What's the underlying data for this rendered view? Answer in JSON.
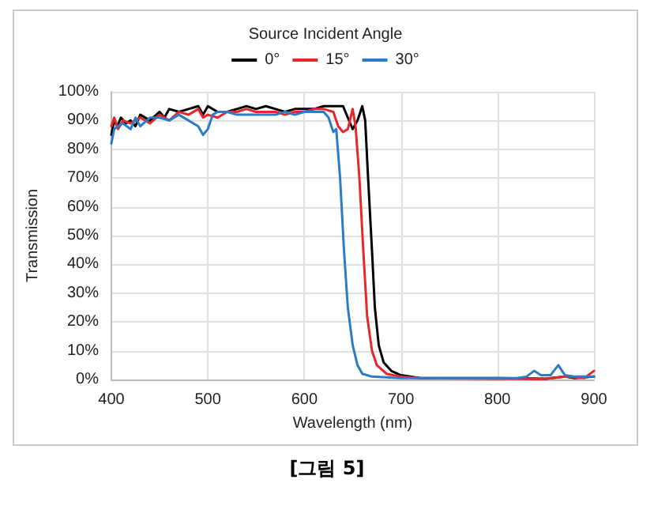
{
  "chart_data": {
    "type": "line",
    "legend_title": "Source Incident Angle",
    "xlabel": "Wavelength (nm)",
    "ylabel": "Transmission",
    "annotations": [
      "[그림 5]"
    ],
    "xlim": [
      400,
      900
    ],
    "xticks": [
      400,
      500,
      600,
      700,
      800,
      900
    ],
    "ylim": [
      0,
      100
    ],
    "yticks": [
      {
        "value": 0,
        "label": "0%"
      },
      {
        "value": 10,
        "label": "10%"
      },
      {
        "value": 20,
        "label": "20%"
      },
      {
        "value": 30,
        "label": "30%"
      },
      {
        "value": 40,
        "label": "40%"
      },
      {
        "value": 50,
        "label": "50%"
      },
      {
        "value": 60,
        "label": "60%"
      },
      {
        "value": 70,
        "label": "70%"
      },
      {
        "value": 80,
        "label": "80%"
      },
      {
        "value": 90,
        "label": "90%"
      },
      {
        "value": 100,
        "label": "100%"
      }
    ],
    "grid": true,
    "legend": "top",
    "marker": "none",
    "line_style": "solid",
    "series": [
      {
        "name": "0°",
        "color": "#000000",
        "x": [
          400,
          403,
          406,
          410,
          415,
          420,
          425,
          430,
          440,
          450,
          455,
          460,
          470,
          480,
          490,
          495,
          500,
          510,
          520,
          530,
          540,
          550,
          560,
          570,
          580,
          590,
          600,
          610,
          620,
          630,
          640,
          645,
          650,
          655,
          660,
          663,
          666,
          670,
          673,
          677,
          682,
          690,
          700,
          720,
          800,
          850,
          870,
          880,
          900
        ],
        "values": [
          85,
          90,
          88,
          91,
          89,
          90,
          88,
          92,
          90,
          93,
          91,
          94,
          93,
          94,
          95,
          92,
          95,
          93,
          93,
          94,
          95,
          94,
          95,
          94,
          93,
          94,
          94,
          94,
          95,
          95,
          95,
          91,
          87,
          90,
          95,
          90,
          70,
          45,
          25,
          12,
          6,
          3,
          1.5,
          0.5,
          0.5,
          0.3,
          1,
          0.5,
          1
        ]
      },
      {
        "name": "15°",
        "color": "#e8262a",
        "x": [
          400,
          403,
          407,
          412,
          420,
          430,
          440,
          450,
          460,
          470,
          480,
          490,
          495,
          500,
          510,
          520,
          530,
          540,
          550,
          560,
          570,
          580,
          590,
          600,
          610,
          620,
          630,
          635,
          640,
          645,
          650,
          653,
          657,
          661,
          665,
          670,
          675,
          685,
          700,
          720,
          800,
          850,
          870,
          890,
          900
        ],
        "values": [
          88,
          91,
          87,
          90,
          89,
          91,
          89,
          92,
          90,
          93,
          92,
          94,
          91,
          92,
          91,
          93,
          93,
          94,
          93,
          93,
          93,
          92,
          93,
          93,
          94,
          94,
          93,
          88,
          86,
          87,
          94,
          88,
          70,
          45,
          22,
          10,
          5,
          2,
          1,
          0.5,
          0.3,
          0.2,
          1,
          0.5,
          3
        ]
      },
      {
        "name": "30°",
        "color": "#2a7bc8",
        "x": [
          400,
          403,
          407,
          412,
          420,
          425,
          430,
          440,
          450,
          460,
          470,
          480,
          490,
          495,
          500,
          505,
          510,
          520,
          530,
          540,
          550,
          560,
          570,
          580,
          590,
          600,
          610,
          620,
          625,
          630,
          633,
          637,
          641,
          645,
          650,
          655,
          660,
          670,
          700,
          800,
          820,
          830,
          838,
          845,
          855,
          863,
          870,
          880,
          900
        ],
        "values": [
          82,
          87,
          88,
          89,
          87,
          91,
          88,
          91,
          91,
          90,
          92,
          90,
          88,
          85,
          87,
          92,
          93,
          93,
          92,
          92,
          92,
          92,
          92,
          93,
          92,
          93,
          93,
          93,
          91,
          86,
          87,
          70,
          45,
          25,
          12,
          5,
          2,
          1,
          0.5,
          0.5,
          0.5,
          1,
          3,
          1.5,
          1.5,
          5,
          1.5,
          1,
          1
        ]
      }
    ]
  }
}
